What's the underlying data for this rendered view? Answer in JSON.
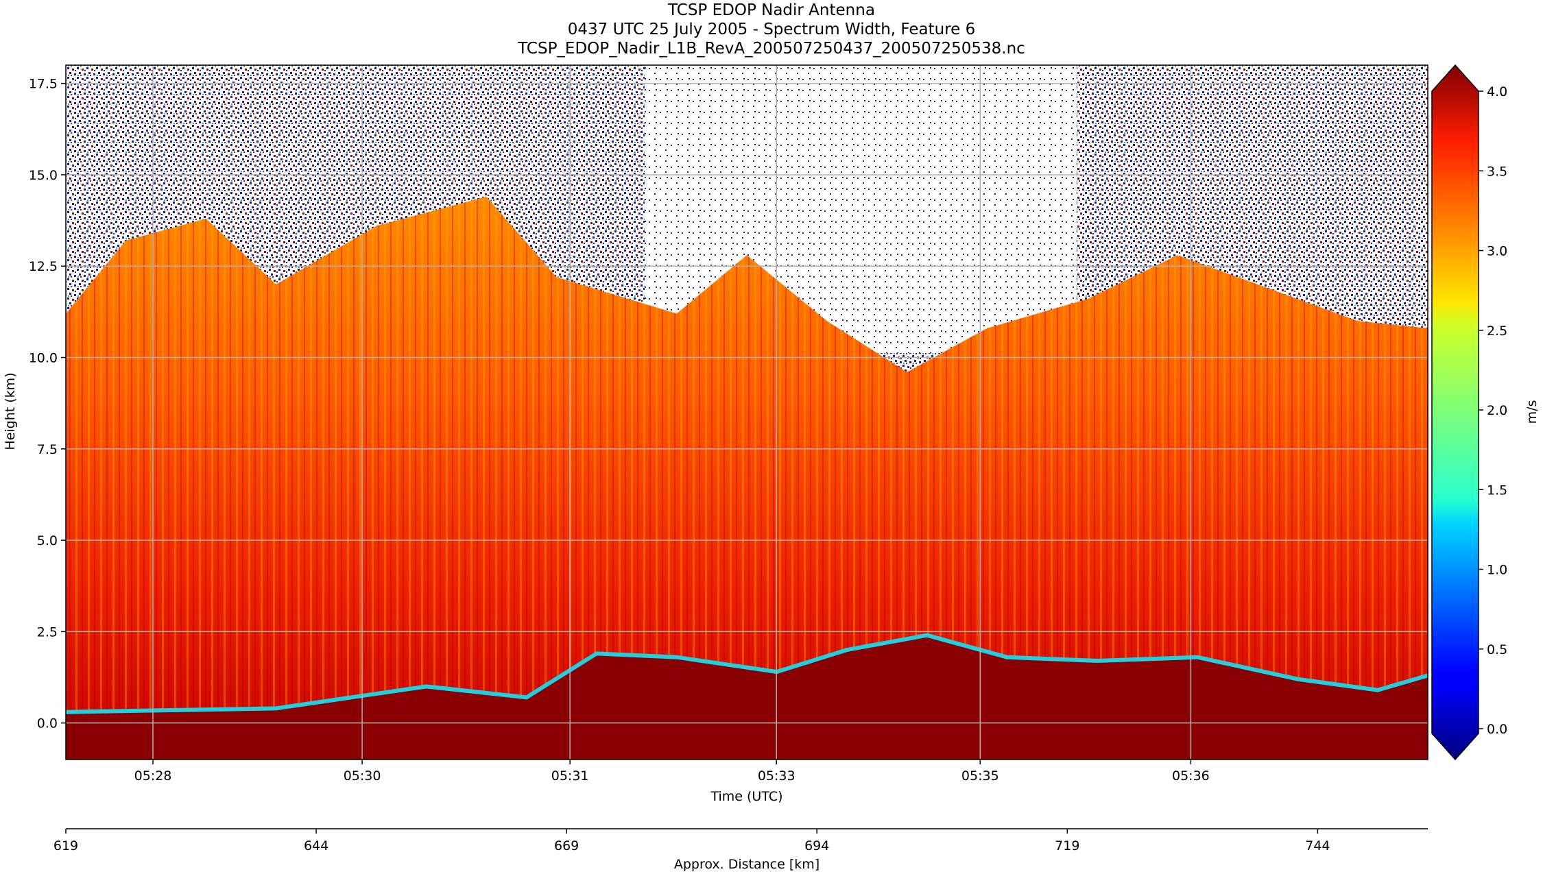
{
  "chart_data": {
    "type": "heatmap",
    "title": [
      "TCSP EDOP Nadir Antenna",
      "0437 UTC 25 July 2005 - Spectrum Width, Feature 6",
      "TCSP_EDOP_Nadir_L1B_RevA_200507250437_200507250538.nc"
    ],
    "xlabel": "Time (UTC)",
    "ylabel": "Height (km)",
    "x2label": "Approx. Distance [km]",
    "colorbar_label": "m/s",
    "colormap": "jet",
    "colorbar_extend": "both",
    "clim": [
      0.0,
      4.0
    ],
    "ylim": [
      -1.0,
      18.0
    ],
    "grid": true,
    "x_ticks": [
      "05:28",
      "05:30",
      "05:31",
      "05:33",
      "05:35",
      "05:36"
    ],
    "y_ticks": [
      "0.0",
      "2.5",
      "5.0",
      "7.5",
      "10.0",
      "12.5",
      "15.0",
      "17.5"
    ],
    "x2_ticks": [
      "619",
      "644",
      "669",
      "694",
      "719",
      "744"
    ],
    "colorbar_ticks": [
      "0.0",
      "0.5",
      "1.0",
      "1.5",
      "2.0",
      "2.5",
      "3.0",
      "3.5",
      "4.0"
    ],
    "y_tick_values": [
      0.0,
      2.5,
      5.0,
      7.5,
      10.0,
      12.5,
      15.0,
      17.5
    ],
    "x2_tick_values": [
      619,
      644,
      669,
      694,
      719,
      744
    ],
    "x2_range": [
      619,
      755
    ],
    "colorbar_tick_values": [
      0.0,
      0.5,
      1.0,
      1.5,
      2.0,
      2.5,
      3.0,
      3.5,
      4.0
    ],
    "echo_top_profile_km": [
      {
        "x": 619,
        "top": 11.2
      },
      {
        "x": 625,
        "top": 13.2
      },
      {
        "x": 633,
        "top": 13.8
      },
      {
        "x": 640,
        "top": 12.0
      },
      {
        "x": 650,
        "top": 13.6
      },
      {
        "x": 661,
        "top": 14.4
      },
      {
        "x": 668,
        "top": 12.2
      },
      {
        "x": 680,
        "top": 11.2
      },
      {
        "x": 687,
        "top": 12.8
      },
      {
        "x": 695,
        "top": 11.0
      },
      {
        "x": 703,
        "top": 9.6
      },
      {
        "x": 711,
        "top": 10.8
      },
      {
        "x": 721,
        "top": 11.6
      },
      {
        "x": 730,
        "top": 12.8
      },
      {
        "x": 740,
        "top": 11.8
      },
      {
        "x": 748,
        "top": 11.0
      },
      {
        "x": 755,
        "top": 10.8
      }
    ],
    "surface_profile_km": [
      {
        "x": 619,
        "surface": 0.3
      },
      {
        "x": 640,
        "surface": 0.4
      },
      {
        "x": 655,
        "surface": 1.0
      },
      {
        "x": 665,
        "surface": 0.7
      },
      {
        "x": 672,
        "surface": 1.9
      },
      {
        "x": 680,
        "surface": 1.8
      },
      {
        "x": 690,
        "surface": 1.4
      },
      {
        "x": 697,
        "surface": 2.0
      },
      {
        "x": 705,
        "surface": 2.4
      },
      {
        "x": 713,
        "surface": 1.8
      },
      {
        "x": 722,
        "surface": 1.7
      },
      {
        "x": 732,
        "surface": 1.8
      },
      {
        "x": 742,
        "surface": 1.2
      },
      {
        "x": 750,
        "surface": 0.9
      },
      {
        "x": 755,
        "surface": 1.3
      }
    ]
  }
}
